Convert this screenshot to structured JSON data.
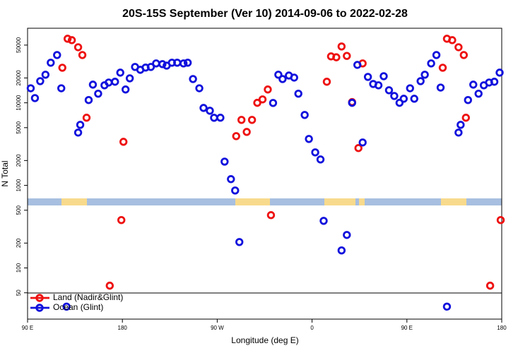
{
  "chart_data": {
    "type": "scatter",
    "title": "20S-15S September (Ver 10)   2014-09-06 to 2022-02-28",
    "x_label": "Longitude (deg E)",
    "y_label": "N Total",
    "log_y": true,
    "legend": "lower left",
    "xlim": [
      90,
      540
    ],
    "xticks": [
      {
        "value": 90,
        "label": "90 E"
      },
      {
        "value": 180,
        "label": "180"
      },
      {
        "value": 270,
        "label": "90 W"
      },
      {
        "value": 360,
        "label": "0"
      },
      {
        "value": 450,
        "label": "90 E"
      },
      {
        "value": 540,
        "label": "180"
      }
    ],
    "ylim": [
      24,
      80000
    ],
    "yticks": [
      50,
      100,
      200,
      500,
      1000,
      2000,
      5000,
      10000,
      20000,
      50000
    ],
    "series": [
      {
        "name": "Land (Nadir&Glint)",
        "color": "#ee1111",
        "x": [
          123,
          128,
          132,
          138,
          142,
          146,
          168,
          179,
          181,
          288,
          293,
          298,
          303,
          308,
          313,
          318,
          321,
          374,
          378,
          383,
          388,
          393,
          398,
          404,
          408,
          484,
          488,
          493,
          499,
          504,
          506,
          529,
          539
        ],
        "values": [
          26600,
          59700,
          57400,
          47100,
          37900,
          6600,
          61,
          380,
          3370,
          3950,
          6210,
          4440,
          6210,
          10000,
          11000,
          14500,
          436,
          18000,
          36500,
          35600,
          48100,
          37000,
          10200,
          2830,
          30000,
          26600,
          59700,
          57400,
          47100,
          37900,
          6600,
          61,
          380
        ]
      },
      {
        "name": "Ocean (Glint)",
        "color": "#1111dd",
        "x": [
          93,
          97,
          102,
          107,
          112,
          118,
          122,
          127,
          138,
          140,
          148,
          152,
          157,
          163,
          167,
          173,
          178,
          183,
          187,
          192,
          197,
          202,
          207,
          212,
          218,
          222,
          227,
          232,
          238,
          242,
          247,
          253,
          257,
          263,
          267,
          273,
          277,
          283,
          287,
          291,
          323,
          328,
          332,
          338,
          343,
          347,
          353,
          357,
          363,
          368,
          371,
          388,
          393,
          398,
          403,
          408,
          413,
          418,
          423,
          428,
          433,
          438,
          443,
          447,
          453,
          457,
          463,
          467,
          473,
          478,
          482,
          488,
          499,
          501,
          508,
          513,
          518,
          523,
          528,
          533,
          538
        ],
        "values": [
          15000,
          11400,
          18300,
          21900,
          30600,
          37900,
          15000,
          34,
          4360,
          5410,
          10800,
          16600,
          12900,
          16300,
          17600,
          18000,
          23200,
          14500,
          19800,
          27200,
          25100,
          26700,
          27200,
          30000,
          29400,
          28200,
          30600,
          30600,
          30000,
          30600,
          19400,
          15000,
          8670,
          8020,
          6590,
          6600,
          1940,
          1190,
          867,
          206,
          9960,
          21900,
          19400,
          21400,
          20200,
          12900,
          7130,
          3650,
          2510,
          2060,
          372,
          163,
          251,
          10000,
          28800,
          3310,
          20600,
          16900,
          16300,
          21000,
          14200,
          12100,
          10000,
          11200,
          15000,
          11200,
          18300,
          21900,
          30000,
          37900,
          15300,
          34,
          4360,
          5410,
          10800,
          16600,
          12900,
          16300,
          17600,
          18000,
          23200
        ]
      }
    ]
  }
}
